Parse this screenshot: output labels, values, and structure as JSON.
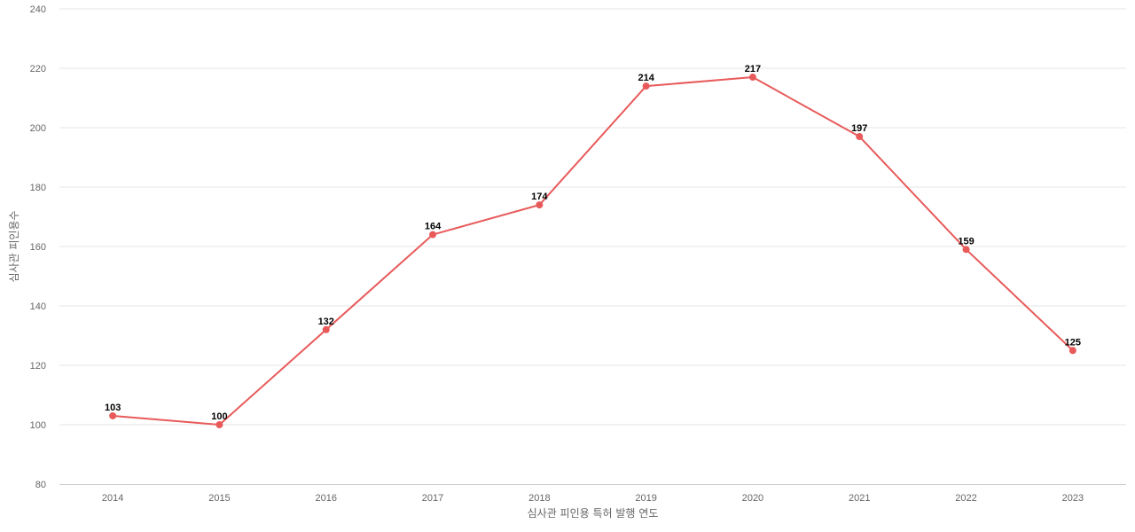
{
  "chart_data": {
    "type": "line",
    "title": "",
    "xlabel": "심사관 피인용 특허 발행 연도",
    "ylabel": "심사관 피인용수",
    "categories": [
      "2014",
      "2015",
      "2016",
      "2017",
      "2018",
      "2019",
      "2020",
      "2021",
      "2022",
      "2023"
    ],
    "series": [
      {
        "values": [
          103,
          100,
          132,
          164,
          174,
          214,
          217,
          197,
          159,
          125
        ],
        "color": "#e85a5a"
      }
    ],
    "ylim": [
      80,
      240
    ],
    "yticks": [
      80,
      100,
      120,
      140,
      160,
      180,
      200,
      220,
      240
    ],
    "grid": true,
    "legend": "none",
    "data_labels": true
  }
}
